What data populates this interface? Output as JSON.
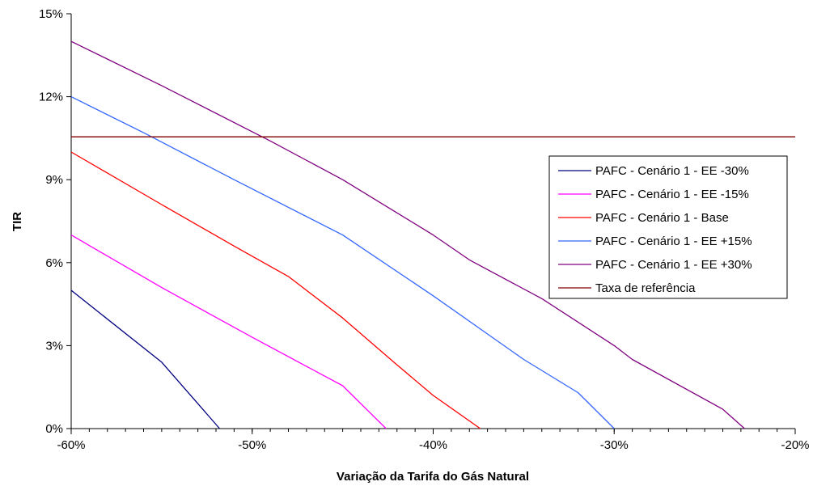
{
  "chart_data": {
    "type": "line",
    "title": "",
    "xlabel": "Variação da Tarifa do Gás Natural",
    "ylabel": "TIR",
    "xlim": [
      -60,
      -20
    ],
    "ylim": [
      0,
      15
    ],
    "x_ticks": [
      -60,
      -50,
      -40,
      -30,
      -20
    ],
    "x_tick_labels": [
      "-60%",
      "-50%",
      "-40%",
      "-30%",
      "-20%"
    ],
    "y_ticks": [
      0,
      3,
      6,
      9,
      12,
      15
    ],
    "y_tick_labels": [
      "0%",
      "3%",
      "6%",
      "9%",
      "12%",
      "15%"
    ],
    "x_minor_step": 1,
    "grid": false,
    "legend_position": "right",
    "series": [
      {
        "name": "PAFC - Cenário 1 - EE -30%",
        "color": "#000080",
        "points": [
          [
            -60,
            5.0
          ],
          [
            -55,
            2.4
          ],
          [
            -51.8,
            0
          ]
        ]
      },
      {
        "name": "PAFC - Cenário 1 - EE -15%",
        "color": "#ff00ff",
        "points": [
          [
            -60,
            7.0
          ],
          [
            -55,
            5.1
          ],
          [
            -50,
            3.3
          ],
          [
            -45,
            1.55
          ],
          [
            -42.6,
            0
          ]
        ]
      },
      {
        "name": "PAFC - Cenário 1 - Base",
        "color": "#ff0000",
        "points": [
          [
            -60,
            10.0
          ],
          [
            -55,
            8.1
          ],
          [
            -51,
            6.6
          ],
          [
            -48,
            5.5
          ],
          [
            -45,
            4.0
          ],
          [
            -42,
            2.3
          ],
          [
            -40,
            1.2
          ],
          [
            -37.4,
            0
          ]
        ]
      },
      {
        "name": "PAFC - Cenário 1 - EE +15%",
        "color": "#3366ff",
        "points": [
          [
            -60,
            12.0
          ],
          [
            -56,
            10.7
          ],
          [
            -51,
            9.0
          ],
          [
            -48,
            8.0
          ],
          [
            -45,
            7.0
          ],
          [
            -40,
            4.8
          ],
          [
            -35,
            2.5
          ],
          [
            -32,
            1.3
          ],
          [
            -30,
            0
          ]
        ]
      },
      {
        "name": "PAFC - Cenário 1 - EE +30%",
        "color": "#800080",
        "points": [
          [
            -60,
            14.0
          ],
          [
            -55,
            12.4
          ],
          [
            -49,
            10.4
          ],
          [
            -45,
            9.0
          ],
          [
            -40,
            7.0
          ],
          [
            -38,
            6.1
          ],
          [
            -34,
            4.7
          ],
          [
            -30,
            3.0
          ],
          [
            -29,
            2.5
          ],
          [
            -24,
            0.7
          ],
          [
            -22.8,
            0
          ]
        ]
      },
      {
        "name": "Taxa de referência",
        "color": "#800000",
        "points": [
          [
            -60,
            10.55
          ],
          [
            -20,
            10.55
          ]
        ]
      }
    ]
  }
}
